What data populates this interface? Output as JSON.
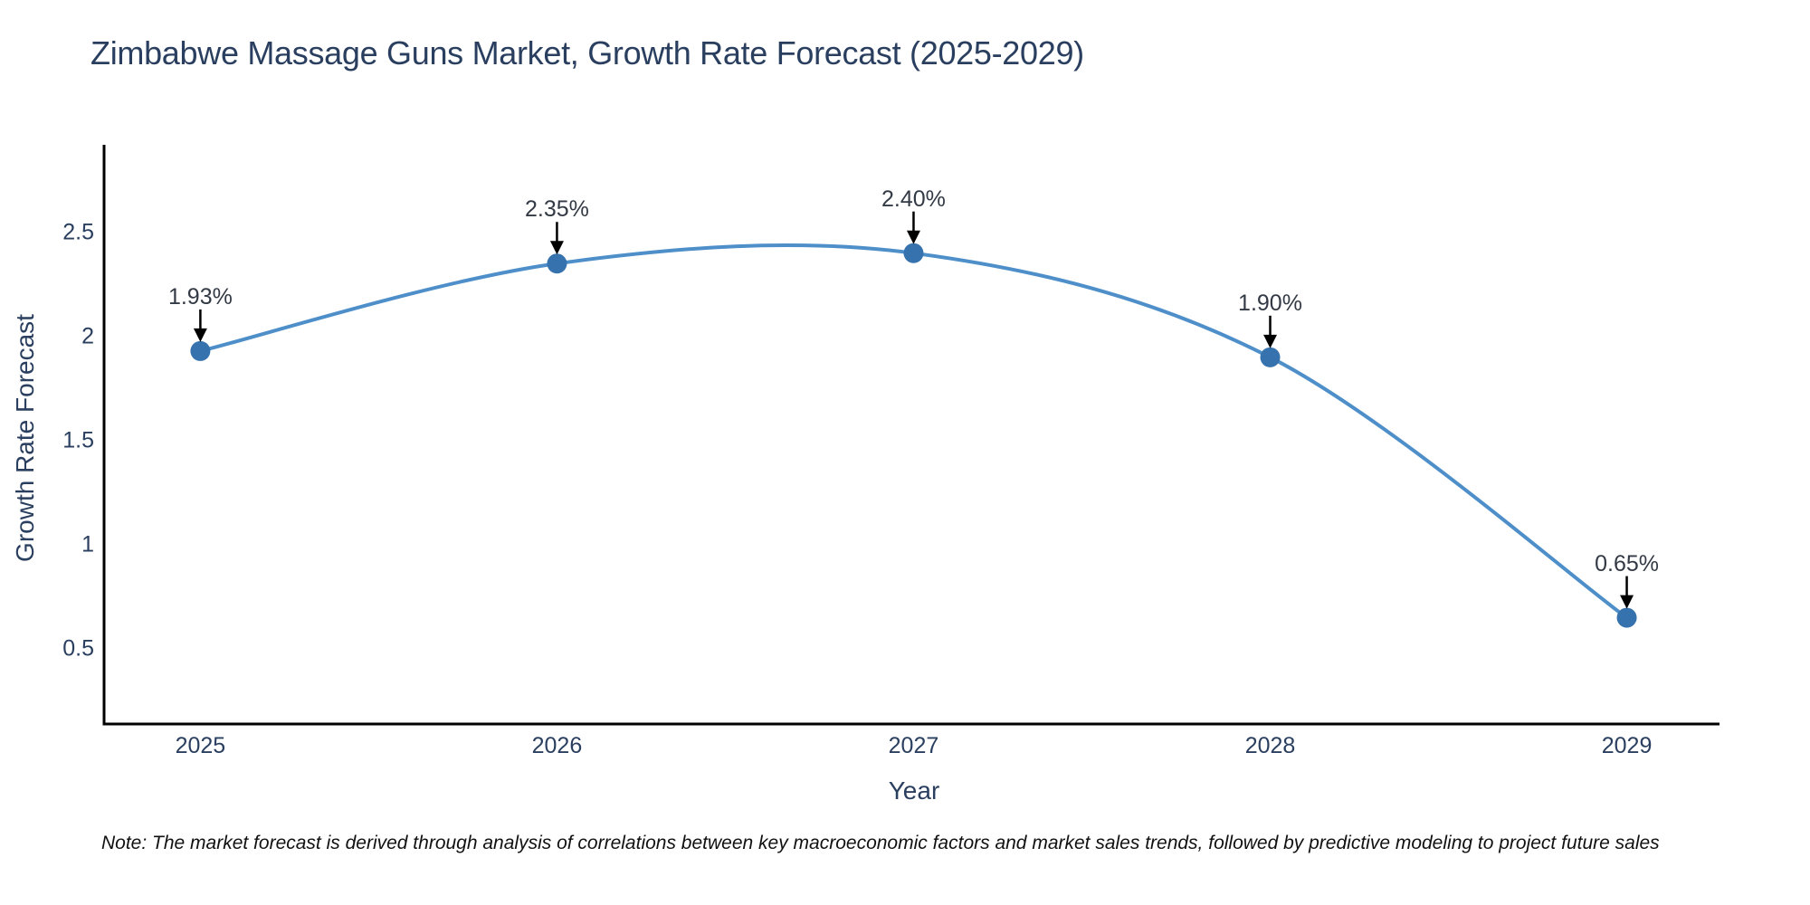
{
  "title": "Zimbabwe Massage Guns Market, Growth Rate Forecast (2025-2029)",
  "note": "Note: The market forecast is derived through analysis of correlations between key macroeconomic factors and market sales trends, followed by predictive modeling to project future sales",
  "chart_data": {
    "type": "line",
    "line_shape": "spline",
    "title": "Zimbabwe Massage Guns Market, Growth Rate Forecast (2025-2029)",
    "xlabel": "Year",
    "ylabel": "Growth Rate Forecast",
    "x": [
      2025,
      2026,
      2027,
      2028,
      2029
    ],
    "series": [
      {
        "name": "Growth Rate Forecast",
        "values": [
          1.93,
          2.35,
          2.4,
          1.9,
          0.65
        ]
      }
    ],
    "point_labels": [
      "1.93%",
      "2.35%",
      "2.40%",
      "1.90%",
      "0.65%"
    ],
    "xtick_labels": [
      "2025",
      "2026",
      "2027",
      "2028",
      "2029"
    ],
    "ytick_values": [
      0.5,
      1,
      1.5,
      2,
      2.5
    ],
    "ytick_labels": [
      "0.5",
      "1",
      "1.5",
      "2",
      "2.5"
    ],
    "xlim": [
      2024.73,
      2029.26
    ],
    "ylim": [
      0.14,
      2.92
    ],
    "grid": false,
    "legend": "none",
    "colors": {
      "line": "#4e8fca",
      "marker": "#3672ae",
      "axis": "#000000",
      "text": "#2a3f5f",
      "annotation_text": "#333a45",
      "arrow": "#000000",
      "background": "#ffffff"
    }
  }
}
